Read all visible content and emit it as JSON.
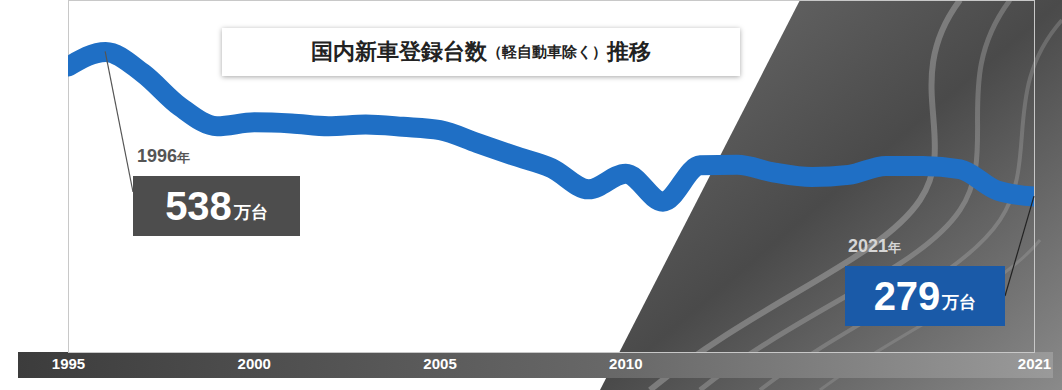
{
  "chart_data": {
    "type": "line",
    "title": "国内新車登録台数（軽自動車除く）推移",
    "x": [
      1995,
      1996,
      1997,
      1998,
      1999,
      2000,
      2001,
      2002,
      2003,
      2004,
      2005,
      2006,
      2007,
      2008,
      2009,
      2010,
      2011,
      2012,
      2013,
      2014,
      2015,
      2016,
      2017,
      2018,
      2019,
      2020,
      2021
    ],
    "values": [
      512,
      538,
      500,
      440,
      405,
      412,
      410,
      405,
      408,
      404,
      398,
      375,
      352,
      330,
      292,
      320,
      270,
      335,
      336,
      322,
      314,
      318,
      334,
      334,
      328,
      290,
      279
    ],
    "color": "#1f6fc5",
    "xlim": [
      1995,
      2021
    ],
    "xticks": [
      1995,
      2000,
      2005,
      2010,
      2021
    ],
    "ylim": [
      0,
      630
    ],
    "tick_labels": "x",
    "grid": false,
    "annotations": [
      {
        "x": 1996,
        "y": 538,
        "label": "1996年",
        "text": "538万台"
      },
      {
        "x": 2021,
        "y": 279,
        "label": "2021年",
        "text": "279万台"
      }
    ]
  }
}
